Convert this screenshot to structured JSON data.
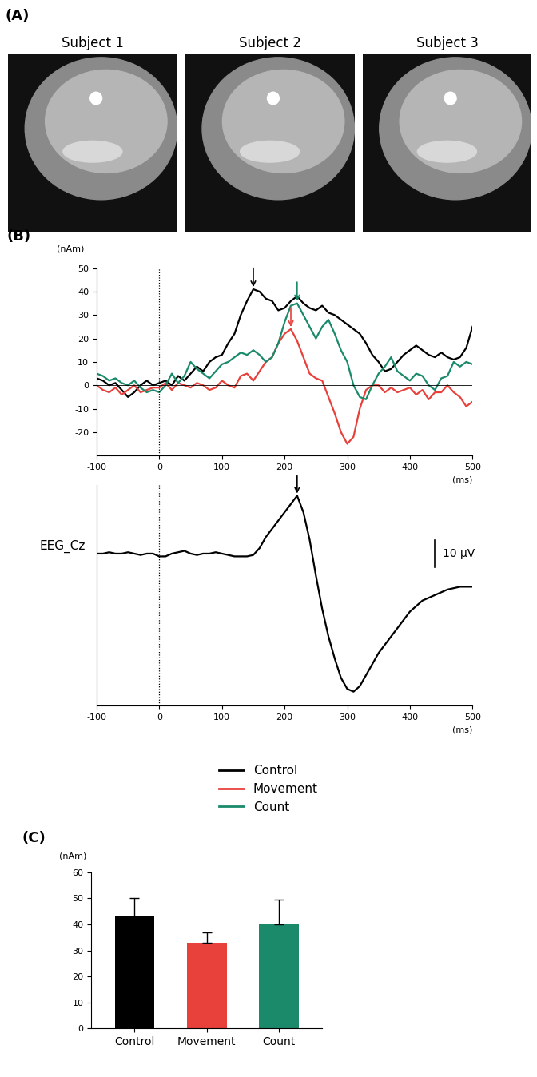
{
  "panel_a": {
    "label": "(A)",
    "subjects": [
      "Subject 1",
      "Subject 2",
      "Subject 3"
    ]
  },
  "chart_data": [
    {
      "type": "line",
      "title": "(B)",
      "ylabel": "(nAm)",
      "xlabel": "(ms)",
      "x": [
        -100,
        -90,
        -80,
        -70,
        -60,
        -50,
        -40,
        -30,
        -20,
        -10,
        0,
        10,
        20,
        30,
        40,
        50,
        60,
        70,
        80,
        90,
        100,
        110,
        120,
        130,
        140,
        150,
        160,
        170,
        180,
        190,
        200,
        210,
        220,
        230,
        240,
        250,
        260,
        270,
        280,
        290,
        300,
        310,
        320,
        330,
        340,
        350,
        360,
        370,
        380,
        390,
        400,
        410,
        420,
        430,
        440,
        450,
        460,
        470,
        480,
        490,
        500
      ],
      "series": [
        {
          "name": "Control",
          "color": "#000000",
          "values": [
            3,
            2,
            0,
            1,
            -2,
            -5,
            -3,
            0,
            2,
            0,
            1,
            2,
            0,
            4,
            2,
            5,
            8,
            6,
            10,
            12,
            13,
            18,
            22,
            30,
            36,
            41,
            40,
            37,
            36,
            32,
            33,
            36,
            38,
            35,
            33,
            32,
            34,
            31,
            30,
            28,
            26,
            24,
            22,
            18,
            13,
            10,
            6,
            7,
            10,
            13,
            15,
            17,
            15,
            13,
            12,
            14,
            12,
            11,
            12,
            16,
            25
          ]
        },
        {
          "name": "Movement",
          "color": "#e8413c",
          "values": [
            0,
            -2,
            -3,
            -1,
            -4,
            -2,
            0,
            -3,
            -2,
            -1,
            -1,
            1,
            -2,
            1,
            0,
            -1,
            1,
            0,
            -2,
            -1,
            2,
            0,
            -1,
            4,
            5,
            2,
            6,
            10,
            12,
            18,
            22,
            24,
            19,
            12,
            5,
            3,
            2,
            -5,
            -12,
            -20,
            -25,
            -22,
            -10,
            -2,
            0,
            0,
            -3,
            -1,
            -3,
            -2,
            -1,
            -4,
            -2,
            -6,
            -3,
            -3,
            0,
            -3,
            -5,
            -9,
            -7
          ]
        },
        {
          "name": "Count",
          "color": "#1b8a6b",
          "values": [
            5,
            4,
            2,
            3,
            1,
            0,
            2,
            -1,
            -3,
            -2,
            -3,
            0,
            5,
            1,
            4,
            10,
            7,
            5,
            3,
            6,
            9,
            10,
            12,
            14,
            13,
            15,
            13,
            10,
            12,
            18,
            27,
            34,
            35,
            30,
            25,
            20,
            25,
            28,
            22,
            15,
            10,
            0,
            -5,
            -6,
            0,
            5,
            8,
            12,
            6,
            4,
            2,
            5,
            4,
            0,
            -2,
            3,
            4,
            10,
            8,
            10,
            9
          ]
        }
      ],
      "xlim": [
        -100,
        500
      ],
      "xticks": [
        -100,
        0,
        100,
        200,
        300,
        400,
        500
      ],
      "ylim": [
        -30,
        50
      ],
      "yticks": [
        -20,
        -10,
        0,
        10,
        20,
        30,
        40,
        50
      ],
      "legend": "upper center"
    },
    {
      "type": "line",
      "ylabel": "EEG_Cz",
      "xlabel": "(ms)",
      "color": "#000000",
      "x": [
        -100,
        -90,
        -80,
        -70,
        -60,
        -50,
        -40,
        -30,
        -20,
        -10,
        0,
        10,
        20,
        30,
        40,
        50,
        60,
        70,
        80,
        90,
        100,
        110,
        120,
        130,
        140,
        150,
        160,
        170,
        180,
        190,
        200,
        210,
        220,
        230,
        240,
        250,
        260,
        270,
        280,
        290,
        300,
        310,
        320,
        330,
        340,
        350,
        360,
        370,
        380,
        390,
        400,
        410,
        420,
        430,
        440,
        450,
        460,
        470,
        480,
        490,
        500
      ],
      "values": [
        0,
        0,
        0.5,
        0,
        0,
        0.5,
        0,
        -0.5,
        0,
        0,
        -1,
        -1,
        0,
        0.5,
        1,
        0,
        -0.5,
        0,
        0,
        0.5,
        0,
        -0.5,
        -1,
        -1,
        -1,
        -0.5,
        2,
        6,
        9,
        12,
        15,
        18,
        21,
        15,
        5,
        -8,
        -20,
        -30,
        -38,
        -45,
        -49,
        -50,
        -48,
        -44,
        -40,
        -36,
        -33,
        -30,
        -27,
        -24,
        -21,
        -19,
        -17,
        -16,
        -15,
        -14,
        -13,
        -12.5,
        -12,
        -12,
        -12
      ],
      "xlim": [
        -100,
        500
      ],
      "xticks": [
        -100,
        0,
        100,
        200,
        300,
        400,
        500
      ],
      "ylim": [
        -55,
        25
      ],
      "tick_labels": "x",
      "scale_bar": {
        "value": 10,
        "label": "10 µV"
      }
    },
    {
      "type": "bar",
      "title": "(C)",
      "ylabel": "(nAm)",
      "categories": [
        "Control",
        "Movement",
        "Count"
      ],
      "values": [
        43,
        33,
        40
      ],
      "errors": [
        7,
        4,
        9.5
      ],
      "colors": [
        "#000000",
        "#e8413c",
        "#1b8a6b"
      ],
      "ylim": [
        0,
        60
      ],
      "yticks": [
        0,
        10,
        20,
        30,
        40,
        50,
        60
      ]
    }
  ]
}
